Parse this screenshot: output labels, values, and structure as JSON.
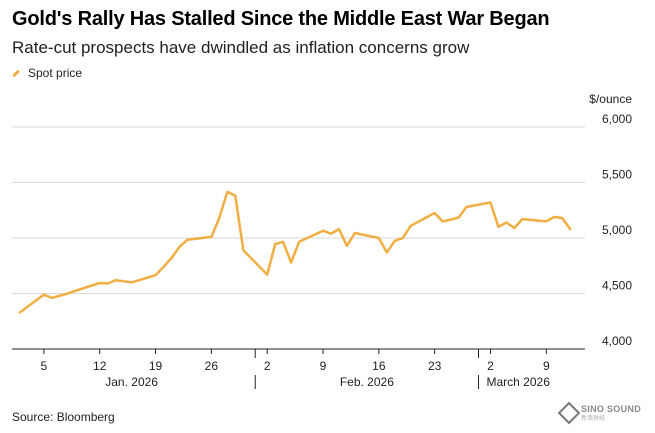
{
  "header": {
    "title": "Gold's Rally Has Stalled Since the Middle East War Began",
    "subtitle": "Rate-cut prospects have dwindled as inflation concerns grow"
  },
  "legend": {
    "label": "Spot price"
  },
  "footer": {
    "source": "Source: Bloomberg"
  },
  "watermark": {
    "title": "SINO SOUND",
    "subtitle": "新浪财经"
  },
  "colors": {
    "line": "#f0ae43",
    "grid": "#d9d9d9",
    "axis": "#222222"
  },
  "chart_data": {
    "type": "line",
    "title": "Gold's Rally Has Stalled Since the Middle East War Began",
    "subtitle": "Rate-cut prospects have dwindled as inflation concerns grow",
    "ylabel": "$/ounce",
    "ylim": [
      4000,
      6000
    ],
    "yticks": [
      4000,
      4500,
      5000,
      5500,
      6000
    ],
    "ytick_labels": [
      "4,000",
      "4,500",
      "5,000",
      "5,500",
      "6,000"
    ],
    "xlim": [
      "2026-01-02",
      "2026-03-12"
    ],
    "xtick_days": [
      5,
      12,
      19,
      26,
      33,
      40,
      47,
      54,
      61,
      68
    ],
    "xtick_labels": [
      "5",
      "12",
      "19",
      "26",
      "2",
      "9",
      "16",
      "23",
      "2",
      "9"
    ],
    "month_labels": [
      {
        "label": "Jan. 2026",
        "start_day": 1,
        "end_day": 31
      },
      {
        "label": "Feb. 2026",
        "start_day": 32,
        "end_day": 59
      },
      {
        "label": "March 2026",
        "start_day": 60,
        "end_day": 71
      }
    ],
    "month_separators": [
      32,
      60
    ],
    "series": [
      {
        "name": "Spot price",
        "x": [
          2,
          5,
          6,
          7,
          8,
          9,
          12,
          13,
          14,
          15,
          16,
          19,
          20,
          21,
          22,
          23,
          26,
          27,
          28,
          29,
          30,
          33,
          34,
          35,
          36,
          37,
          40,
          41,
          42,
          43,
          44,
          47,
          48,
          49,
          50,
          51,
          54,
          55,
          56,
          57,
          58,
          61,
          62,
          63,
          64,
          65,
          68,
          69,
          70,
          71
        ],
        "values": [
          4330,
          4490,
          4460,
          4480,
          4500,
          4525,
          4595,
          4590,
          4620,
          4610,
          4600,
          4665,
          4740,
          4820,
          4920,
          4985,
          5010,
          5180,
          5415,
          5380,
          4890,
          4670,
          4945,
          4965,
          4780,
          4965,
          5065,
          5040,
          5080,
          4930,
          5045,
          5000,
          4870,
          4975,
          5000,
          5110,
          5225,
          5150,
          5165,
          5185,
          5280,
          5320,
          5100,
          5140,
          5090,
          5170,
          5150,
          5190,
          5180,
          5080
        ]
      }
    ]
  }
}
